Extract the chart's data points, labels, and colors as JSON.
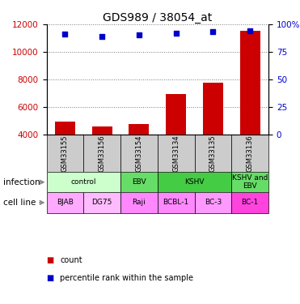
{
  "title": "GDS989 / 38054_at",
  "samples": [
    "GSM33155",
    "GSM33156",
    "GSM33154",
    "GSM33134",
    "GSM33135",
    "GSM33136"
  ],
  "counts": [
    4950,
    4550,
    4750,
    6900,
    7750,
    11500
  ],
  "percentile_y_values": [
    11300,
    11100,
    11250,
    11350,
    11450,
    11500
  ],
  "bar_color": "#cc0000",
  "dot_color": "#0000cc",
  "ylim_left": [
    4000,
    12000
  ],
  "yticks_left": [
    4000,
    6000,
    8000,
    10000,
    12000
  ],
  "yticks_right": [
    0,
    25,
    50,
    75,
    100
  ],
  "right_tick_labels": [
    "0",
    "25",
    "50",
    "75",
    "100%"
  ],
  "infection_groups": [
    {
      "label": "control",
      "span": [
        0,
        2
      ],
      "color": "#ccffcc"
    },
    {
      "label": "EBV",
      "span": [
        2,
        3
      ],
      "color": "#66dd66"
    },
    {
      "label": "KSHV",
      "span": [
        3,
        5
      ],
      "color": "#44cc44"
    },
    {
      "label": "KSHV and\nEBV",
      "span": [
        5,
        6
      ],
      "color": "#66dd66"
    }
  ],
  "cell_lines": [
    "BJAB",
    "DG75",
    "Raji",
    "BCBL-1",
    "BC-3",
    "BC-1"
  ],
  "cell_line_colors": [
    "#ffaaff",
    "#ffbbff",
    "#ff88ff",
    "#ff88ff",
    "#ff99ff",
    "#ff44dd"
  ],
  "bar_width": 0.55,
  "left_label_color": "#cc0000",
  "right_label_color": "#0000cc",
  "grid_color": "#777777",
  "background_color": "#ffffff",
  "sample_row_color": "#cccccc"
}
